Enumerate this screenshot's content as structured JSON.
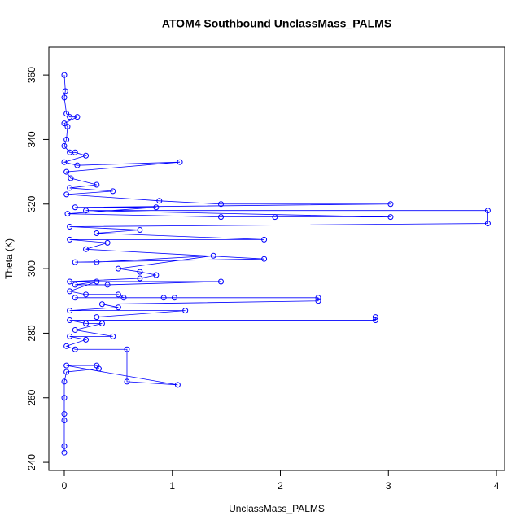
{
  "chart_data": {
    "type": "line",
    "markers": true,
    "title": "ATOM4 Southbound UnclassMass_PALMS",
    "x_label": "UnclassMass_PALMS",
    "y_label": "Theta (K)",
    "color": "#0000ff",
    "x": [
      0,
      0.01,
      0,
      0.02,
      0.05,
      0.12,
      0,
      0.03,
      0.02,
      0,
      0.05,
      0.1,
      0.2,
      0,
      0.12,
      1.07,
      0.02,
      0.06,
      0.3,
      0.05,
      0.45,
      0.02,
      0.88,
      1.45,
      3.02,
      0.1,
      0.85,
      0.03,
      1.45,
      1.95,
      3.02,
      0.2,
      3.92,
      3.92,
      0.05,
      0.7,
      0.3,
      1.85,
      0.05,
      0.4,
      0.2,
      1.85,
      0.1,
      0.3,
      1.38,
      0.5,
      0.7,
      0.85,
      0.7,
      0.05,
      1.45,
      0.4,
      0.1,
      0.3,
      0.05,
      0.2,
      0.5,
      0.55,
      0.92,
      1.02,
      0.1,
      2.35,
      2.35,
      0.35,
      0.5,
      0.05,
      1.12,
      0.3,
      2.88,
      2.88,
      0.05,
      0.2,
      0.35,
      0.1,
      0.45,
      0.05,
      0.2,
      0.02,
      0.1,
      0.58,
      0.58,
      1.05,
      0.02,
      0.3,
      0.32,
      0.02,
      0,
      0,
      0,
      0,
      0,
      0
    ],
    "values": [
      360,
      355,
      353,
      348,
      347,
      347,
      345,
      344,
      340,
      338,
      336,
      336,
      335,
      333,
      332,
      333,
      330,
      328,
      326,
      325,
      324,
      323,
      321,
      320,
      320,
      319,
      319,
      317,
      316,
      316,
      316,
      318,
      318,
      314,
      313,
      312,
      311,
      309,
      309,
      308,
      306,
      303,
      302,
      302,
      304,
      300,
      299,
      298,
      297,
      296,
      296,
      295,
      295,
      296,
      293,
      292,
      292,
      291,
      291,
      291,
      291,
      291,
      290,
      289,
      288,
      287,
      287,
      285,
      285,
      284,
      284,
      283,
      283,
      281,
      279,
      279,
      278,
      276,
      275,
      275,
      265,
      264,
      270,
      270,
      269,
      268,
      265,
      260,
      255,
      253,
      245,
      243
    ],
    "xlim": [
      -0.143,
      4.075
    ],
    "ylim": [
      237.5,
      368.6
    ],
    "xticks": [
      0,
      1,
      2,
      3,
      4
    ],
    "yticks": [
      240,
      260,
      280,
      300,
      320,
      340,
      360
    ]
  }
}
